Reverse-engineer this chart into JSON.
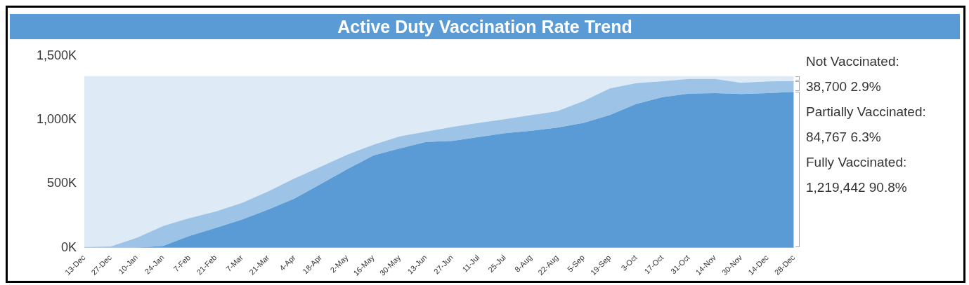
{
  "chart_data": {
    "type": "area",
    "title": "Active Duty Vaccination Rate Trend",
    "categories": [
      "13-Dec",
      "27-Dec",
      "10-Jan",
      "24-Jan",
      "7-Feb",
      "21-Feb",
      "7-Mar",
      "21-Mar",
      "4-Apr",
      "18-Apr",
      "2-May",
      "16-May",
      "30-May",
      "13-Jun",
      "27-Jun",
      "11-Jul",
      "25-Jul",
      "8-Aug",
      "22-Aug",
      "5-Sep",
      "19-Sep",
      "3-Oct",
      "17-Oct",
      "31-Oct",
      "14-Nov",
      "30-Nov",
      "14-Dec",
      "28-Dec"
    ],
    "stacked": true,
    "ylim": [
      0,
      1500
    ],
    "yticks": [
      {
        "value": 0,
        "label": "0K"
      },
      {
        "value": 500,
        "label": "500K"
      },
      {
        "value": 1000,
        "label": "1,000K"
      },
      {
        "value": 1500,
        "label": "1,500K"
      }
    ],
    "grid": false,
    "legend": "right",
    "series": [
      {
        "name": "Fully Vaccinated:",
        "color": "#5b9bd5",
        "values": [
          0,
          0,
          0,
          14,
          92,
          155,
          221,
          298,
          385,
          499,
          613,
          722,
          777,
          828,
          835,
          866,
          896,
          915,
          940,
          977,
          1038,
          1124,
          1178,
          1205,
          1210,
          1203,
          1210,
          1219
        ]
      },
      {
        "name": "Partially Vaccinated:",
        "color": "#9dc3e6",
        "values": [
          5,
          10,
          78,
          156,
          140,
          129,
          129,
          143,
          157,
          135,
          115,
          83,
          94,
          80,
          110,
          111,
          110,
          123,
          128,
          171,
          209,
          164,
          125,
          115,
          110,
          88,
          92,
          85
        ]
      },
      {
        "name": "Not Vaccinated:",
        "color": "#deebf7",
        "values": [
          1338,
          1333,
          1265,
          1173,
          1111,
          1059,
          993,
          902,
          801,
          709,
          615,
          538,
          472,
          435,
          398,
          366,
          337,
          305,
          275,
          195,
          96,
          55,
          40,
          23,
          23,
          52,
          41,
          39
        ]
      }
    ],
    "annotations": [
      "1,219,442 90.8%",
      "84,767 6.3%",
      "38,700 2.9%"
    ]
  }
}
